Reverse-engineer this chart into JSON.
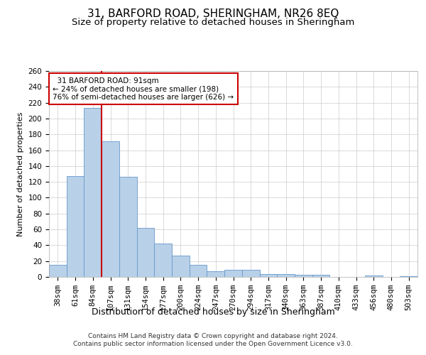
{
  "title1": "31, BARFORD ROAD, SHERINGHAM, NR26 8EQ",
  "title2": "Size of property relative to detached houses in Sheringham",
  "xlabel": "Distribution of detached houses by size in Sheringham",
  "ylabel": "Number of detached properties",
  "categories": [
    "38sqm",
    "61sqm",
    "84sqm",
    "107sqm",
    "131sqm",
    "154sqm",
    "177sqm",
    "200sqm",
    "224sqm",
    "247sqm",
    "270sqm",
    "294sqm",
    "317sqm",
    "340sqm",
    "363sqm",
    "387sqm",
    "410sqm",
    "433sqm",
    "456sqm",
    "480sqm",
    "503sqm"
  ],
  "values": [
    15,
    127,
    213,
    171,
    126,
    62,
    42,
    27,
    15,
    7,
    9,
    9,
    4,
    4,
    3,
    3,
    0,
    0,
    2,
    0,
    1
  ],
  "bar_color": "#b8d0e8",
  "bar_edge_color": "#6699cc",
  "vline_x": 2.5,
  "vline_color": "#cc0000",
  "annotation_text": "  31 BARFORD ROAD: 91sqm  \n← 24% of detached houses are smaller (198)\n76% of semi-detached houses are larger (626) →",
  "annotation_box_color": "#ffffff",
  "annotation_box_edge": "#cc0000",
  "ylim": [
    0,
    260
  ],
  "yticks": [
    0,
    20,
    40,
    60,
    80,
    100,
    120,
    140,
    160,
    180,
    200,
    220,
    240,
    260
  ],
  "bg_color": "#ffffff",
  "grid_color": "#cccccc",
  "footer1": "Contains HM Land Registry data © Crown copyright and database right 2024.",
  "footer2": "Contains public sector information licensed under the Open Government Licence v3.0.",
  "title1_fontsize": 11,
  "title2_fontsize": 9.5,
  "xlabel_fontsize": 9,
  "ylabel_fontsize": 8,
  "tick_fontsize": 7.5,
  "ann_fontsize": 7.5,
  "footer_fontsize": 6.5
}
